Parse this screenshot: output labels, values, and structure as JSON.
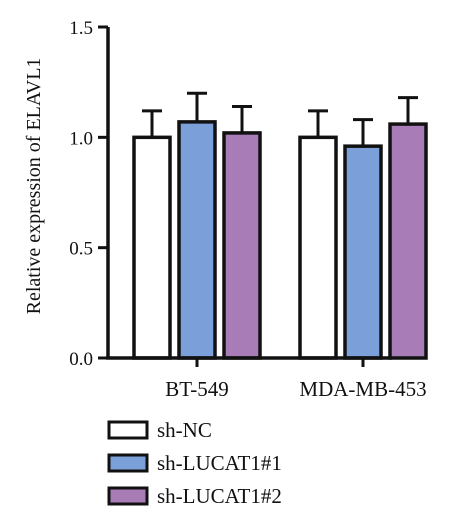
{
  "chart_data": {
    "type": "bar",
    "ylabel": "Relative expression of ELAVL1",
    "xlabel": "",
    "ylim": [
      0,
      1.5
    ],
    "yticks": [
      0.0,
      0.5,
      1.0,
      1.5
    ],
    "ytick_labels": [
      "0.0",
      "0.5",
      "1.0",
      "1.5"
    ],
    "categories": [
      "BT-549",
      "MDA-MB-453"
    ],
    "series": [
      {
        "name": "sh-NC",
        "color": "#ffffff",
        "values": [
          1.0,
          1.0
        ],
        "errors": [
          0.12,
          0.12
        ]
      },
      {
        "name": "sh-LUCAT1#1",
        "color": "#7b9fd8",
        "values": [
          1.07,
          0.96
        ],
        "errors": [
          0.13,
          0.12
        ]
      },
      {
        "name": "sh-LUCAT1#2",
        "color": "#a77cb7",
        "values": [
          1.02,
          1.06
        ],
        "errors": [
          0.12,
          0.12
        ]
      }
    ],
    "legend_position": "bottom-left",
    "grid": false
  }
}
